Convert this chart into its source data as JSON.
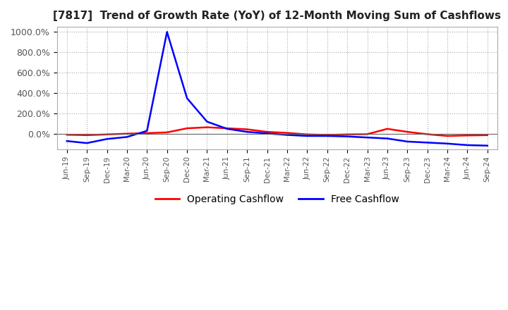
{
  "title": "[7817]  Trend of Growth Rate (YoY) of 12-Month Moving Sum of Cashflows",
  "ylim": [
    -150,
    1050
  ],
  "yticks": [
    0,
    200,
    400,
    600,
    800,
    1000
  ],
  "ytick_labels": [
    "0.0%",
    "200.0%",
    "400.0%",
    "600.0%",
    "800.0%",
    "1000.0%"
  ],
  "legend_labels": [
    "Operating Cashflow",
    "Free Cashflow"
  ],
  "legend_colors": [
    "#ff0000",
    "#0000ff"
  ],
  "x_labels": [
    "Jun-19",
    "Sep-19",
    "Dec-19",
    "Mar-20",
    "Jun-20",
    "Sep-20",
    "Dec-20",
    "Mar-21",
    "Jun-21",
    "Sep-21",
    "Dec-21",
    "Mar-22",
    "Jun-22",
    "Sep-22",
    "Dec-22",
    "Mar-23",
    "Jun-23",
    "Sep-23",
    "Dec-23",
    "Mar-24",
    "Jun-24",
    "Sep-24"
  ],
  "operating_cashflow": [
    -8,
    -12,
    -5,
    2,
    8,
    15,
    55,
    65,
    55,
    45,
    20,
    10,
    -5,
    -10,
    -5,
    -3,
    50,
    20,
    -3,
    -20,
    -15,
    -12
  ],
  "free_cashflow": [
    -70,
    -90,
    -50,
    -30,
    30,
    1000,
    350,
    120,
    50,
    20,
    5,
    -10,
    -20,
    -20,
    -25,
    -35,
    -45,
    -75,
    -85,
    -95,
    -110,
    -115
  ],
  "background_color": "#ffffff",
  "grid_color": "#aaaaaa",
  "line_width": 1.8
}
